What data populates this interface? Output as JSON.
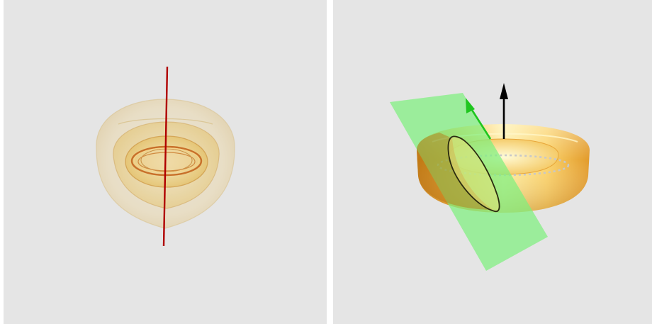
{
  "colors": {
    "background": "#e5e5e5",
    "divider": "#ffffff",
    "axis_line": "#b00000",
    "torus_gold": "#f7c64a",
    "torus_highlight": "#fff4b0",
    "plane_green": "#7ef07e",
    "normal_arrow_green": "#1fc61f",
    "vertical_arrow": "#000000",
    "dotted_circle": "#bfbfbf"
  },
  "panels": {
    "left": {
      "content": "nested-tori-about-axis",
      "torus_layers": 4,
      "axis_color": "#b00000"
    },
    "right": {
      "content": "torus-sliced-by-plane",
      "arrows": [
        "vertical-axis-arrow",
        "plane-normal-arrow"
      ],
      "slice_curve": "villarceau-circle"
    }
  }
}
